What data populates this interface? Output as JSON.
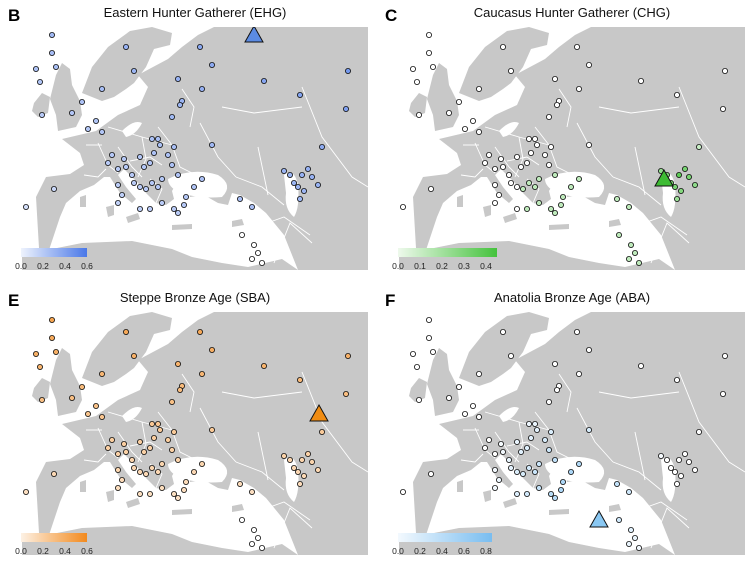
{
  "panels": [
    {
      "letter": "B",
      "title": "Eastern Hunter Gatherer (EHG)",
      "color": "#4a78e8",
      "low_color": "#eef3fd",
      "triangle_color": "#5b8be3",
      "legend_ticks": [
        "0.0",
        "0.2",
        "0.4",
        "0.6"
      ],
      "legend_max": 0.6,
      "triangle_location": "Russia (Volga region)"
    },
    {
      "letter": "C",
      "title": "Caucasus Hunter Gatherer (CHG)",
      "color": "#44c23c",
      "low_color": "#eef9ec",
      "triangle_color": "#3dbb33",
      "legend_ticks": [
        "0.0",
        "0.1",
        "0.2",
        "0.3",
        "0.4"
      ],
      "legend_max": 0.45,
      "triangle_location": "Caucasus"
    },
    {
      "letter": "E",
      "title": "Steppe Bronze Age (SBA)",
      "color": "#f28a1e",
      "low_color": "#fdf1e4",
      "triangle_color": "#f08c12",
      "legend_ticks": [
        "0.0",
        "0.2",
        "0.4",
        "0.6"
      ],
      "legend_max": 0.6,
      "triangle_location": "Pontic-Caspian steppe"
    },
    {
      "letter": "F",
      "title": "Anatolia Bronze Age (ABA)",
      "color": "#79bdf0",
      "low_color": "#f3f9fe",
      "triangle_color": "#8ac8f3",
      "legend_ticks": [
        "0.0",
        "0.2",
        "0.4",
        "0.6",
        "0.8"
      ],
      "legend_max": 0.85,
      "triangle_location": "Central Anatolia"
    }
  ]
}
